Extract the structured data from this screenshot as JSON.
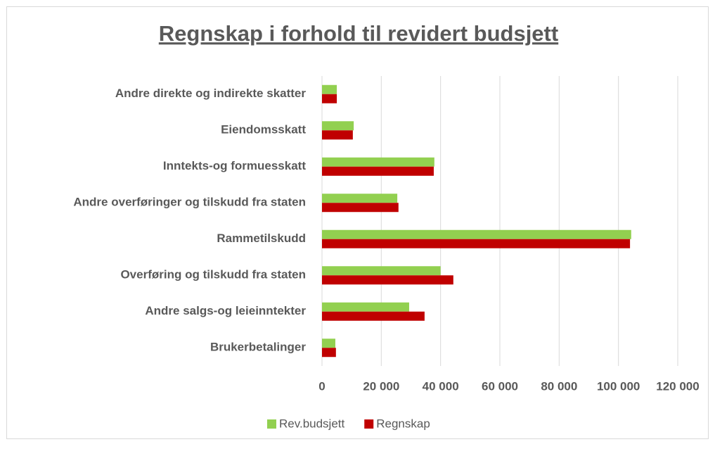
{
  "chart_data": {
    "type": "bar",
    "orientation": "horizontal",
    "title": "Regnskap i forhold til revidert budsjett",
    "categories": [
      "Andre direkte og indirekte skatter",
      "Eiendomsskatt",
      "Inntekts-og formuesskatt",
      "Andre overføringer og tilskudd fra staten",
      "Rammetilskudd",
      "Overføring og tilskudd fra staten",
      "Andre salgs-og leieinntekter",
      "Brukerbetalinger"
    ],
    "series": [
      {
        "name": "Rev.budsjett",
        "color": "#92d050",
        "values": [
          5000,
          10700,
          37900,
          25400,
          104300,
          40000,
          29400,
          4500
        ]
      },
      {
        "name": "Regnskap",
        "color": "#c00000",
        "values": [
          5000,
          10400,
          37700,
          25800,
          103900,
          44300,
          34600,
          4700
        ]
      }
    ],
    "xlim": [
      0,
      120000
    ],
    "xticks": [
      0,
      {
        "value": 20000,
        "label": "20 000"
      },
      {
        "value": 40000,
        "label": "40 000"
      },
      {
        "value": 60000,
        "label": "60 000"
      },
      {
        "value": 80000,
        "label": "80 000"
      },
      {
        "value": 100000,
        "label": "100 000"
      },
      {
        "value": 120000,
        "label": "120 000"
      }
    ],
    "grid": true,
    "legend": "bottom"
  }
}
